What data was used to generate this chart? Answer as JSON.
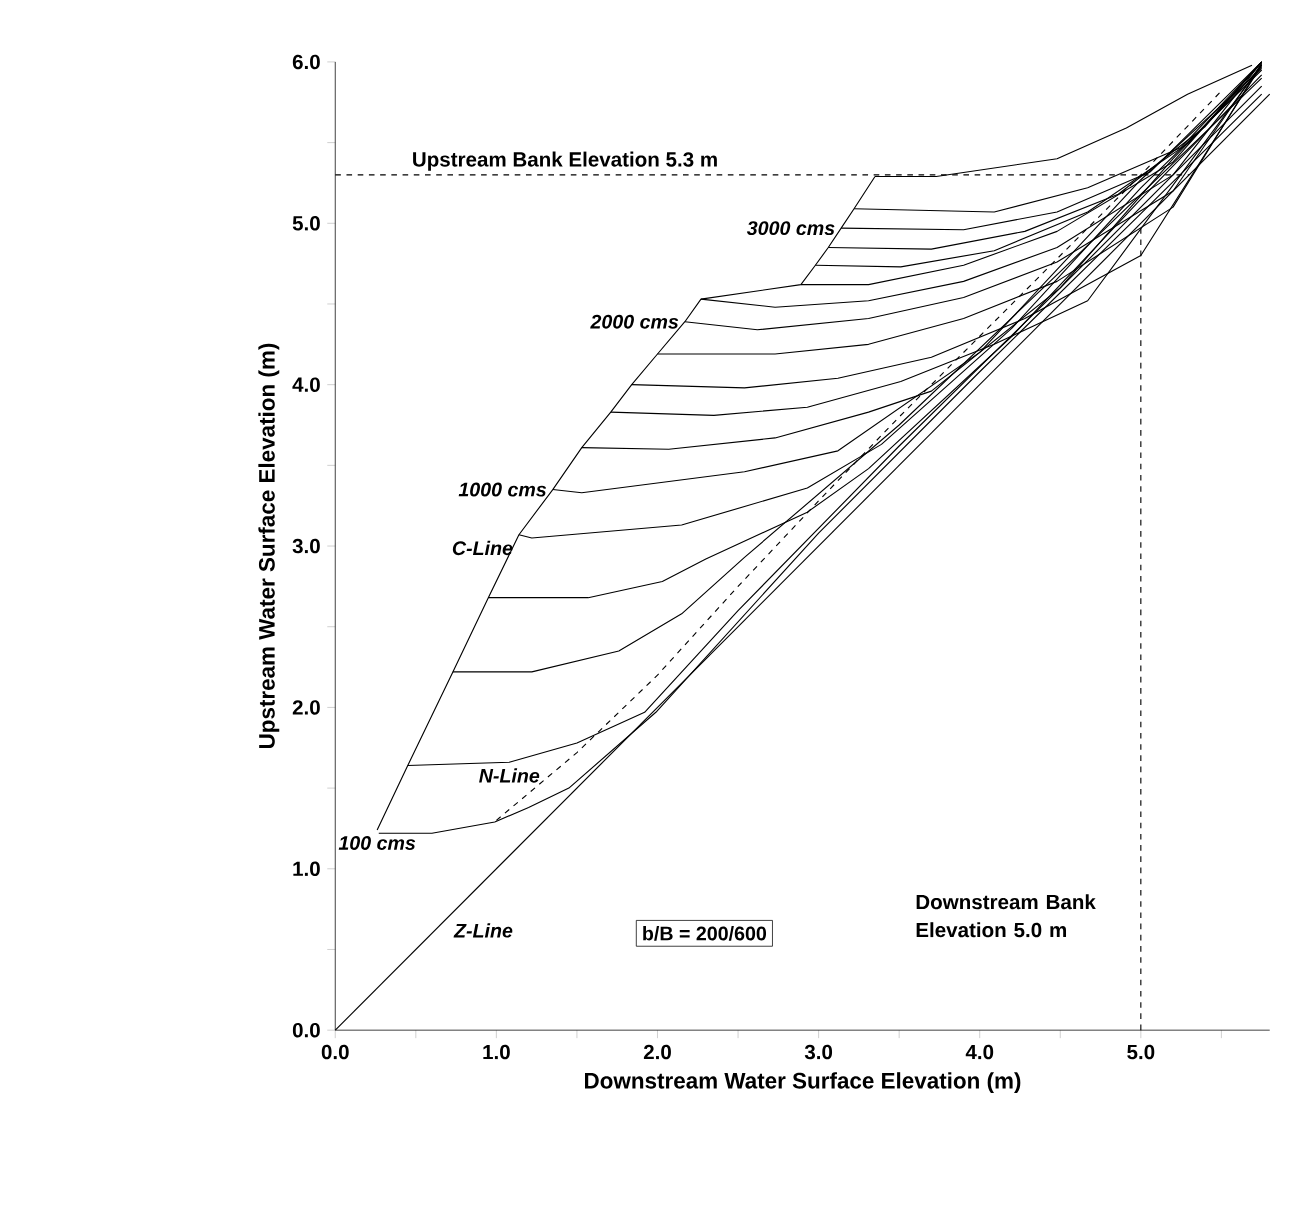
{
  "chart_data": {
    "type": "line",
    "xlabel": "Downstream Water Surface Elevation (m)",
    "ylabel": "Upstream Water Surface Elevation (m)",
    "xlim": [
      0,
      5.8
    ],
    "ylim": [
      0,
      6
    ],
    "xticks": [
      {
        "value": 0,
        "label": "0.0"
      },
      {
        "value": 0.5,
        "label": null
      },
      {
        "value": 1,
        "label": "1.0"
      },
      {
        "value": 1.5,
        "label": null
      },
      {
        "value": 2,
        "label": "2.0"
      },
      {
        "value": 2.5,
        "label": null
      },
      {
        "value": 3,
        "label": "3.0"
      },
      {
        "value": 3.5,
        "label": null
      },
      {
        "value": 4,
        "label": "4.0"
      },
      {
        "value": 4.5,
        "label": null
      },
      {
        "value": 5,
        "label": "5.0"
      },
      {
        "value": 5.5,
        "label": null
      }
    ],
    "yticks": [
      {
        "value": 0,
        "label": "0.0"
      },
      {
        "value": 0.5,
        "label": null
      },
      {
        "value": 1,
        "label": "1.0"
      },
      {
        "value": 1.5,
        "label": null
      },
      {
        "value": 2,
        "label": "2.0"
      },
      {
        "value": 2.5,
        "label": null
      },
      {
        "value": 3,
        "label": "3.0"
      },
      {
        "value": 3.5,
        "label": null
      },
      {
        "value": 4,
        "label": "4.0"
      },
      {
        "value": 4.5,
        "label": null
      },
      {
        "value": 5,
        "label": "5.0"
      },
      {
        "value": 5.5,
        "label": null
      },
      {
        "value": 6,
        "label": "6.0"
      }
    ],
    "series": [
      {
        "color": "#000000",
        "x": [
          0,
          5.8
        ],
        "values": [
          0,
          5.8
        ]
      },
      {
        "color": "#000000",
        "x": [
          0.26,
          0.45,
          0.73,
          0.95,
          1.14,
          1.35,
          1.53,
          1.71,
          1.84,
          2.0,
          2.17,
          2.27,
          2.89,
          2.98,
          3.06,
          3.14,
          3.22,
          3.35
        ],
        "values": [
          1.24,
          1.64,
          2.22,
          2.68,
          3.07,
          3.35,
          3.61,
          3.83,
          4.0,
          4.19,
          4.39,
          4.53,
          4.62,
          4.74,
          4.85,
          4.97,
          5.09,
          5.29
        ]
      },
      {
        "color": "#000000",
        "line_style": "dashed",
        "x": [
          1.0,
          1.5,
          2.0,
          2.5,
          3.0,
          3.5,
          4.0,
          4.5,
          5.0,
          5.5
        ],
        "values": [
          1.3,
          1.72,
          2.2,
          2.75,
          3.28,
          3.8,
          4.3,
          4.8,
          5.3,
          5.82
        ]
      },
      {
        "color": "#000000",
        "x": [
          0.27,
          0.6,
          0.99,
          1.2,
          1.45,
          1.99,
          3.0,
          4.0,
          5.0,
          5.75
        ],
        "values": [
          1.22,
          1.22,
          1.29,
          1.38,
          1.5,
          1.97,
          3.08,
          4.08,
          5.06,
          5.8
        ]
      },
      {
        "color": "#000000",
        "x": [
          0.45,
          1.08,
          1.5,
          1.92,
          2.5,
          3.5,
          4.5,
          5.75
        ],
        "values": [
          1.64,
          1.66,
          1.78,
          1.97,
          2.6,
          3.62,
          4.6,
          5.85
        ]
      },
      {
        "color": "#000000",
        "x": [
          0.73,
          1.22,
          1.76,
          2.15,
          2.54,
          3.5,
          4.5,
          5.75
        ],
        "values": [
          2.22,
          2.22,
          2.35,
          2.58,
          2.93,
          3.75,
          4.7,
          5.9
        ]
      },
      {
        "color": "#000000",
        "x": [
          0.95,
          1.57,
          2.03,
          2.3,
          2.93,
          3.31,
          4.2,
          5.0,
          5.75
        ],
        "values": [
          2.68,
          2.68,
          2.78,
          2.92,
          3.21,
          3.48,
          4.3,
          5.15,
          5.92
        ]
      },
      {
        "color": "#000000",
        "x": [
          1.14,
          1.22,
          2.15,
          2.93,
          3.39,
          4.2,
          5.0,
          5.75
        ],
        "values": [
          3.07,
          3.05,
          3.13,
          3.36,
          3.63,
          4.35,
          5.22,
          5.95
        ]
      },
      {
        "color": "#000000",
        "x": [
          1.35,
          1.53,
          2.54,
          3.12,
          4.0,
          5.0,
          5.75
        ],
        "values": [
          3.35,
          3.33,
          3.46,
          3.59,
          4.2,
          5.27,
          5.96
        ]
      },
      {
        "color": "#000000",
        "x": [
          1.53,
          2.07,
          2.73,
          3.31,
          3.7,
          4.5,
          5.2,
          5.75
        ],
        "values": [
          3.61,
          3.6,
          3.67,
          3.83,
          3.96,
          4.6,
          5.4,
          5.97
        ]
      },
      {
        "color": "#000000",
        "x": [
          1.71,
          2.35,
          2.93,
          3.51,
          4.09,
          4.67,
          5.75
        ],
        "values": [
          3.83,
          3.81,
          3.86,
          4.02,
          4.25,
          4.52,
          5.98
        ]
      },
      {
        "color": "#000000",
        "x": [
          1.84,
          2.54,
          3.12,
          3.7,
          4.28,
          5.0,
          5.75
        ],
        "values": [
          4.0,
          3.98,
          4.04,
          4.17,
          4.41,
          4.8,
          5.98
        ]
      },
      {
        "color": "#000000",
        "x": [
          2.0,
          2.73,
          3.31,
          3.9,
          4.48,
          5.2,
          5.75
        ],
        "values": [
          4.19,
          4.19,
          4.25,
          4.41,
          4.64,
          5.1,
          5.99
        ]
      },
      {
        "color": "#000000",
        "x": [
          2.17,
          2.62,
          3.31,
          3.9,
          4.48,
          5.2,
          5.75
        ],
        "values": [
          4.39,
          4.34,
          4.41,
          4.54,
          4.76,
          5.2,
          5.99
        ]
      },
      {
        "color": "#000000",
        "x": [
          2.27,
          2.73,
          3.31,
          3.9,
          4.48,
          5.2,
          5.75
        ],
        "values": [
          4.53,
          4.48,
          4.52,
          4.64,
          4.85,
          5.3,
          6.0
        ]
      },
      {
        "color": "#000000",
        "x": [
          2.89,
          3.31,
          3.9,
          4.48,
          5.2,
          5.75
        ],
        "values": [
          4.62,
          4.62,
          4.74,
          4.95,
          5.38,
          6.0
        ]
      },
      {
        "color": "#000000",
        "x": [
          2.98,
          3.51,
          4.09,
          4.67,
          5.3,
          5.75
        ],
        "values": [
          4.74,
          4.73,
          4.83,
          5.07,
          5.5,
          6.0
        ]
      },
      {
        "color": "#000000",
        "x": [
          3.06,
          3.7,
          4.28,
          4.86,
          5.4,
          5.75
        ],
        "values": [
          4.85,
          4.84,
          4.95,
          5.18,
          5.6,
          6.0
        ]
      },
      {
        "color": "#000000",
        "x": [
          3.14,
          3.9,
          4.48,
          5.06,
          5.75
        ],
        "values": [
          4.97,
          4.96,
          5.07,
          5.32,
          6.0
        ]
      },
      {
        "color": "#000000",
        "x": [
          3.22,
          4.09,
          4.67,
          5.25,
          5.75
        ],
        "values": [
          5.09,
          5.07,
          5.22,
          5.47,
          6.0
        ]
      },
      {
        "color": "#000000",
        "x": [
          3.35,
          3.73,
          4.48,
          4.91,
          5.29,
          5.69
        ],
        "values": [
          5.29,
          5.29,
          5.4,
          5.59,
          5.8,
          5.98
        ]
      }
    ],
    "ref_lines": [
      {
        "axis": "y",
        "value": 5.3,
        "label": "Upstream Bank Elevation 5.3 m",
        "color": "#000000",
        "line_style": "dashed"
      },
      {
        "axis": "x",
        "value": 5.0,
        "label": "Downstream Bank Elevation 5.0 m",
        "color": "#000000",
        "line_style": "dashed"
      }
    ],
    "annotations": [
      {
        "text": "3000 cms",
        "x": 3.14,
        "y": 4.97
      },
      {
        "text": "2000 cms",
        "x": 2.17,
        "y": 4.39
      },
      {
        "text": "1000 cms",
        "x": 1.35,
        "y": 3.35
      },
      {
        "text": "C-Line",
        "x": 1.14,
        "y": 3.07
      },
      {
        "text": "N-Line",
        "x": 1.08,
        "y": 1.66
      },
      {
        "text": "100 cms",
        "x": 0.26,
        "y": 1.24
      },
      {
        "text": "Z-Line",
        "x": 0.7,
        "y": 0.7
      },
      "b/B = 200/600"
    ]
  }
}
